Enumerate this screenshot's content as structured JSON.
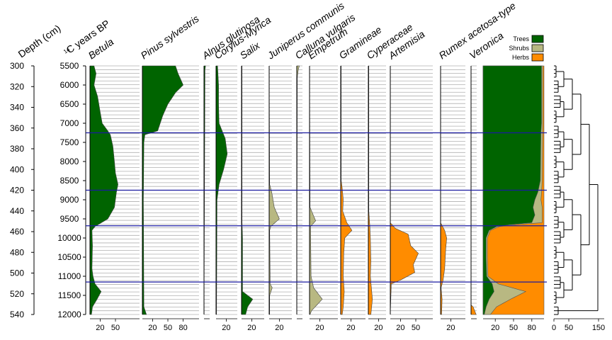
{
  "chart_data": {
    "type": "area",
    "subtype": "pollen stratigraphic diagram",
    "left_axes": {
      "depth_label": "Depth (cm)",
      "depth_ticks": [
        300,
        320,
        340,
        360,
        380,
        400,
        420,
        440,
        460,
        480,
        500,
        520,
        540
      ],
      "age_label_super": "14",
      "age_label": "C years BP",
      "age_ticks": [
        5500,
        6000,
        6500,
        7000,
        7500,
        8000,
        8500,
        9000,
        9500,
        10000,
        10500,
        11000,
        11500,
        12000
      ]
    },
    "zone_boundaries_age": [
      7250,
      8750,
      9680,
      11150
    ],
    "taxa": [
      {
        "name": "Betula",
        "color": "#006400",
        "ticks": [
          "20",
          "50"
        ],
        "tick_values": [
          20,
          50
        ],
        "profile": [
          [
            5500,
            8
          ],
          [
            5700,
            12
          ],
          [
            6000,
            8
          ],
          [
            6300,
            15
          ],
          [
            6700,
            20
          ],
          [
            7000,
            24
          ],
          [
            7200,
            35
          ],
          [
            7300,
            40
          ],
          [
            7600,
            45
          ],
          [
            8000,
            48
          ],
          [
            8300,
            50
          ],
          [
            8600,
            55
          ],
          [
            8800,
            52
          ],
          [
            9200,
            48
          ],
          [
            9500,
            35
          ],
          [
            9700,
            10
          ],
          [
            9800,
            4
          ],
          [
            10200,
            5
          ],
          [
            10800,
            4
          ],
          [
            11000,
            6
          ],
          [
            11200,
            10
          ],
          [
            11400,
            22
          ],
          [
            11600,
            14
          ],
          [
            11800,
            5
          ],
          [
            12000,
            3
          ]
        ]
      },
      {
        "name": "Pinus sylvestris",
        "color": "#006400",
        "ticks": [
          "20",
          "50",
          "80"
        ],
        "tick_values": [
          20,
          50,
          80
        ],
        "profile": [
          [
            5500,
            65
          ],
          [
            5700,
            70
          ],
          [
            6000,
            80
          ],
          [
            6200,
            65
          ],
          [
            6500,
            50
          ],
          [
            6800,
            40
          ],
          [
            7000,
            35
          ],
          [
            7200,
            30
          ],
          [
            7300,
            5
          ],
          [
            7500,
            3
          ],
          [
            9000,
            2
          ],
          [
            11800,
            3
          ],
          [
            12000,
            8
          ]
        ]
      },
      {
        "name": "Alnus glutinosa",
        "color": "#006400",
        "ticks": [],
        "tick_values": [],
        "profile": [
          [
            5500,
            3
          ],
          [
            5600,
            2
          ],
          [
            12000,
            0
          ]
        ]
      },
      {
        "name": "Corylus-Myrica",
        "color": "#006400",
        "ticks": [
          "20"
        ],
        "tick_values": [
          20
        ],
        "profile": [
          [
            5500,
            3
          ],
          [
            6000,
            5
          ],
          [
            6500,
            5
          ],
          [
            7000,
            6
          ],
          [
            7400,
            18
          ],
          [
            7800,
            22
          ],
          [
            8200,
            15
          ],
          [
            8600,
            6
          ],
          [
            9000,
            2
          ],
          [
            12000,
            1
          ]
        ]
      },
      {
        "name": "Salix",
        "color": "#006400",
        "ticks": [
          "20"
        ],
        "tick_values": [
          20
        ],
        "profile": [
          [
            5500,
            1
          ],
          [
            9600,
            1
          ],
          [
            10000,
            2
          ],
          [
            11400,
            2
          ],
          [
            11600,
            22
          ],
          [
            11800,
            12
          ],
          [
            12000,
            8
          ]
        ]
      },
      {
        "name": "Juniperus communis",
        "color": "#b8b882",
        "ticks": [
          "20"
        ],
        "tick_values": [
          20
        ],
        "profile": [
          [
            5500,
            0
          ],
          [
            8600,
            1
          ],
          [
            8800,
            5
          ],
          [
            9200,
            10
          ],
          [
            9500,
            20
          ],
          [
            9700,
            3
          ],
          [
            9800,
            1
          ],
          [
            11200,
            2
          ],
          [
            11300,
            6
          ],
          [
            11500,
            1
          ],
          [
            12000,
            1
          ]
        ]
      },
      {
        "name": "Calluna vulgaris",
        "color": "#b8b882",
        "ticks": [],
        "tick_values": [],
        "profile": [
          [
            5500,
            5
          ],
          [
            5600,
            3
          ],
          [
            5800,
            1
          ],
          [
            12000,
            0
          ]
        ]
      },
      {
        "name": "Empetrum",
        "color": "#b8b882",
        "ticks": [
          "20"
        ],
        "tick_values": [
          20
        ],
        "profile": [
          [
            5500,
            0
          ],
          [
            9200,
            1
          ],
          [
            9550,
            12
          ],
          [
            9700,
            2
          ],
          [
            11000,
            3
          ],
          [
            11300,
            8
          ],
          [
            11600,
            25
          ],
          [
            11900,
            4
          ],
          [
            12000,
            1
          ]
        ]
      },
      {
        "name": "Gramineae",
        "color": "#ff8c00",
        "ticks": [
          "20"
        ],
        "tick_values": [
          20
        ],
        "profile": [
          [
            5500,
            1
          ],
          [
            8500,
            1
          ],
          [
            8700,
            3
          ],
          [
            9000,
            5
          ],
          [
            9300,
            4
          ],
          [
            9600,
            12
          ],
          [
            9800,
            22
          ],
          [
            10000,
            8
          ],
          [
            10400,
            6
          ],
          [
            11000,
            5
          ],
          [
            11400,
            7
          ],
          [
            11800,
            5
          ],
          [
            12000,
            3
          ]
        ]
      },
      {
        "name": "Cyperaceae",
        "color": "#ff8c00",
        "ticks": [
          "20"
        ],
        "tick_values": [
          20
        ],
        "profile": [
          [
            5500,
            1
          ],
          [
            9300,
            1
          ],
          [
            9700,
            3
          ],
          [
            10000,
            4
          ],
          [
            10600,
            5
          ],
          [
            11000,
            4
          ],
          [
            11600,
            8
          ],
          [
            12000,
            5
          ]
        ]
      },
      {
        "name": "Artemisia",
        "color": "#ff8c00",
        "ticks": [
          "20",
          "50"
        ],
        "tick_values": [
          20,
          50
        ],
        "profile": [
          [
            5500,
            0
          ],
          [
            9600,
            0
          ],
          [
            9750,
            10
          ],
          [
            9900,
            35
          ],
          [
            10200,
            40
          ],
          [
            10400,
            55
          ],
          [
            10700,
            45
          ],
          [
            10900,
            48
          ],
          [
            11100,
            20
          ],
          [
            11200,
            2
          ],
          [
            12000,
            0
          ]
        ]
      },
      {
        "name": "Rumex acetosa-type",
        "color": "#ff8c00",
        "ticks": [
          "20"
        ],
        "tick_values": [
          20
        ],
        "profile": [
          [
            5500,
            0
          ],
          [
            9600,
            0
          ],
          [
            9800,
            8
          ],
          [
            10000,
            12
          ],
          [
            10300,
            10
          ],
          [
            10800,
            8
          ],
          [
            11100,
            5
          ],
          [
            11300,
            1
          ],
          [
            11600,
            3
          ],
          [
            12000,
            2
          ]
        ]
      },
      {
        "name": "Veronica",
        "color": "#ff8c00",
        "ticks": [],
        "tick_values": [],
        "profile": [
          [
            5500,
            0
          ],
          [
            11750,
            0
          ],
          [
            11800,
            4
          ],
          [
            12000,
            10
          ]
        ]
      }
    ],
    "summary": {
      "ticks": [
        "20",
        "50",
        "80"
      ],
      "tick_values": [
        20,
        50,
        80
      ],
      "legend": [
        {
          "label": "Trees",
          "color": "#006400"
        },
        {
          "label": "Shrubs",
          "color": "#b8b882"
        },
        {
          "label": "Herbs",
          "color": "#ff8c00"
        }
      ],
      "trees_cum": [
        [
          5500,
          96
        ],
        [
          7000,
          96
        ],
        [
          7250,
          95
        ],
        [
          8500,
          94
        ],
        [
          8800,
          90
        ],
        [
          9000,
          85
        ],
        [
          9200,
          82
        ],
        [
          9400,
          85
        ],
        [
          9600,
          80
        ],
        [
          9680,
          25
        ],
        [
          9800,
          10
        ],
        [
          10000,
          5
        ],
        [
          10500,
          5
        ],
        [
          11000,
          6
        ],
        [
          11200,
          15
        ],
        [
          11400,
          18
        ],
        [
          11600,
          10
        ],
        [
          11800,
          5
        ],
        [
          12000,
          2
        ]
      ],
      "shrubs_cum": [
        [
          5500,
          98
        ],
        [
          7000,
          98
        ],
        [
          8500,
          97
        ],
        [
          8800,
          96
        ],
        [
          9000,
          95
        ],
        [
          9200,
          97
        ],
        [
          9400,
          97
        ],
        [
          9600,
          97
        ],
        [
          9680,
          30
        ],
        [
          9800,
          12
        ],
        [
          10000,
          7
        ],
        [
          10500,
          7
        ],
        [
          11000,
          8
        ],
        [
          11200,
          25
        ],
        [
          11400,
          70
        ],
        [
          11600,
          45
        ],
        [
          11800,
          22
        ],
        [
          12000,
          12
        ]
      ]
    },
    "dendrogram_ticks": [
      "0",
      "50",
      "150"
    ],
    "dendrogram_tick_values": [
      0,
      50,
      150
    ],
    "xlim": [
      0,
      100
    ]
  }
}
